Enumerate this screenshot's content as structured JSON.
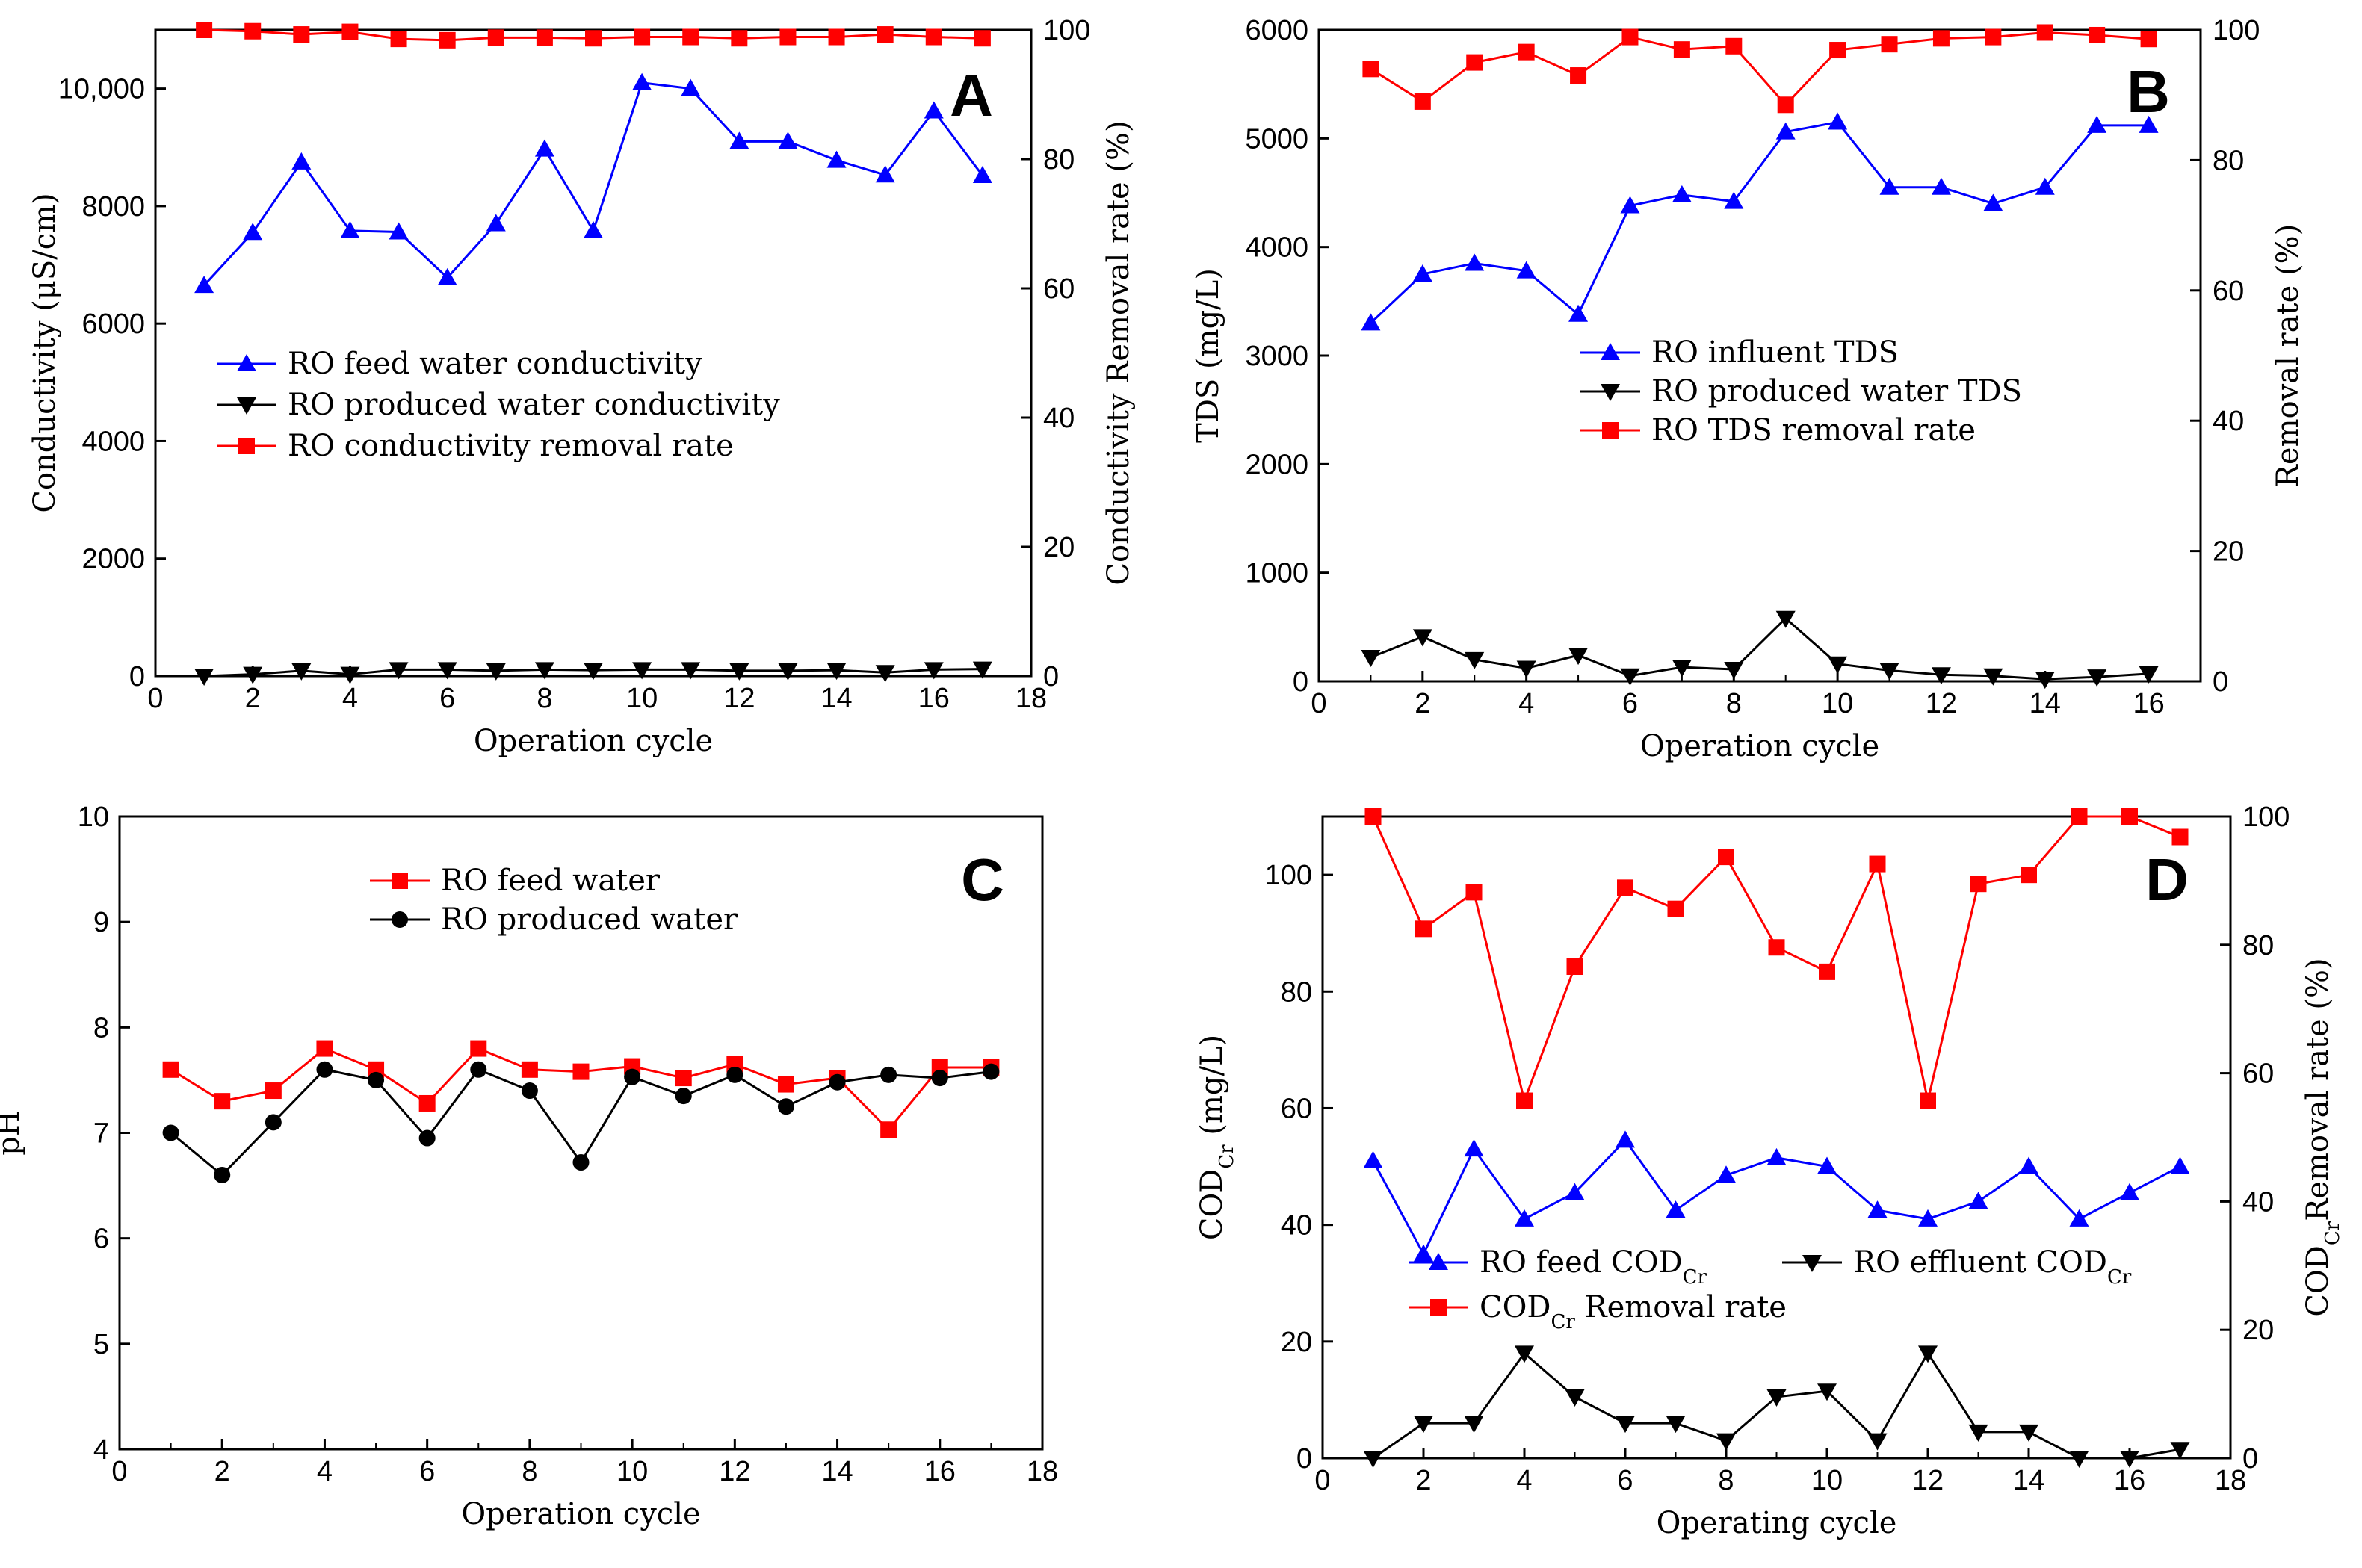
{
  "chart_data": [
    {
      "type": "line",
      "panel": "A",
      "xlabel": "Operation cycle",
      "ylabel": "Conductivity (μS/cm)",
      "y2label": "Conductivity Removal rate (%)",
      "xlim": [
        0,
        18
      ],
      "ylim": [
        0,
        11000
      ],
      "y2lim": [
        0,
        100
      ],
      "xticks": [
        "0",
        "2",
        "4",
        "6",
        "8",
        "10",
        "12",
        "14",
        "16",
        "18"
      ],
      "yticks": [
        {
          "v": 0,
          "t": "0"
        },
        {
          "v": 2000,
          "t": "2000"
        },
        {
          "v": 4000,
          "t": "4000"
        },
        {
          "v": 6000,
          "t": "6000"
        },
        {
          "v": 8000,
          "t": "8000"
        },
        {
          "v": 10000,
          "t": "10,000"
        }
      ],
      "y2ticks": [
        {
          "v": 0,
          "t": "0"
        },
        {
          "v": 20,
          "t": "20"
        },
        {
          "v": 40,
          "t": "40"
        },
        {
          "v": 60,
          "t": "60"
        },
        {
          "v": 80,
          "t": "80"
        },
        {
          "v": 100,
          "t": "100"
        }
      ],
      "legend_position": "center-left",
      "series": [
        {
          "name": "RO feed water conductivity",
          "color": "#0000ff",
          "marker": "triangle-up",
          "axis": "left",
          "x": [
            1,
            2,
            3,
            4,
            5,
            6,
            7,
            8,
            9,
            10,
            11,
            12,
            13,
            14,
            15,
            16,
            17
          ],
          "y": [
            6650,
            7550,
            8750,
            7580,
            7560,
            6780,
            7700,
            8970,
            7580,
            10100,
            10000,
            9100,
            9100,
            8780,
            8530,
            9620,
            8520
          ]
        },
        {
          "name": "RO produced water conductivity",
          "color": "#000000",
          "marker": "triangle-down",
          "axis": "left",
          "x": [
            1,
            2,
            3,
            4,
            5,
            6,
            7,
            8,
            9,
            10,
            11,
            12,
            13,
            14,
            15,
            16,
            17
          ],
          "y": [
            0,
            30,
            90,
            30,
            110,
            110,
            90,
            110,
            100,
            110,
            110,
            90,
            90,
            100,
            60,
            110,
            120
          ]
        },
        {
          "name": "RO conductivity removal rate",
          "color": "#ff0000",
          "marker": "square",
          "axis": "right",
          "x": [
            1,
            2,
            3,
            4,
            5,
            6,
            7,
            8,
            9,
            10,
            11,
            12,
            13,
            14,
            15,
            16,
            17
          ],
          "y": [
            100,
            99.8,
            99.3,
            99.7,
            98.6,
            98.4,
            98.8,
            98.8,
            98.7,
            98.9,
            98.9,
            98.7,
            98.9,
            98.9,
            99.3,
            98.9,
            98.7
          ]
        }
      ]
    },
    {
      "type": "line",
      "panel": "B",
      "xlabel": "Operation cycle",
      "ylabel": "TDS (mg/L)",
      "y2label": "Removal rate (%)",
      "xlim": [
        0,
        17
      ],
      "ylim": [
        0,
        6000
      ],
      "y2lim": [
        0,
        100
      ],
      "xticks": [
        "0",
        "2",
        "4",
        "6",
        "8",
        "10",
        "12",
        "14",
        "16"
      ],
      "yticks": [
        {
          "v": 0,
          "t": "0"
        },
        {
          "v": 1000,
          "t": "1000"
        },
        {
          "v": 2000,
          "t": "2000"
        },
        {
          "v": 3000,
          "t": "3000"
        },
        {
          "v": 4000,
          "t": "4000"
        },
        {
          "v": 5000,
          "t": "5000"
        },
        {
          "v": 6000,
          "t": "6000"
        }
      ],
      "y2ticks": [
        {
          "v": 0,
          "t": "0"
        },
        {
          "v": 20,
          "t": "20"
        },
        {
          "v": 40,
          "t": "40"
        },
        {
          "v": 60,
          "t": "60"
        },
        {
          "v": 80,
          "t": "80"
        },
        {
          "v": 100,
          "t": "100"
        }
      ],
      "legend_position": "center-right",
      "series": [
        {
          "name": "RO influent TDS",
          "color": "#0000ff",
          "marker": "triangle-up",
          "axis": "left",
          "x": [
            1,
            2,
            3,
            4,
            5,
            6,
            7,
            8,
            9,
            10,
            11,
            12,
            13,
            14,
            15,
            16
          ],
          "y": [
            3300,
            3750,
            3850,
            3780,
            3380,
            4380,
            4480,
            4420,
            5060,
            5150,
            4550,
            4550,
            4400,
            4550,
            5120,
            5120
          ]
        },
        {
          "name": "RO produced water TDS",
          "color": "#000000",
          "marker": "triangle-down",
          "axis": "left",
          "x": [
            1,
            2,
            3,
            4,
            5,
            6,
            7,
            8,
            9,
            10,
            11,
            12,
            13,
            14,
            15,
            16
          ],
          "y": [
            220,
            410,
            200,
            120,
            240,
            50,
            130,
            110,
            580,
            160,
            100,
            60,
            50,
            20,
            40,
            70
          ]
        },
        {
          "name": "RO TDS removal rate",
          "color": "#ff0000",
          "marker": "square",
          "axis": "right",
          "x": [
            1,
            2,
            3,
            4,
            5,
            6,
            7,
            8,
            9,
            10,
            11,
            12,
            13,
            14,
            15,
            16
          ],
          "y": [
            94,
            89,
            95,
            96.6,
            93,
            98.9,
            97,
            97.5,
            88.5,
            96.9,
            97.8,
            98.7,
            98.9,
            99.6,
            99.2,
            98.6
          ]
        }
      ]
    },
    {
      "type": "line",
      "panel": "C",
      "xlabel": "Operation cycle",
      "ylabel": "pH",
      "xlim": [
        0,
        18
      ],
      "ylim": [
        4,
        10
      ],
      "xticks": [
        "0",
        "2",
        "4",
        "6",
        "8",
        "10",
        "12",
        "14",
        "16",
        "18"
      ],
      "yticks": [
        {
          "v": 4,
          "t": "4"
        },
        {
          "v": 5,
          "t": "5"
        },
        {
          "v": 6,
          "t": "6"
        },
        {
          "v": 7,
          "t": "7"
        },
        {
          "v": 8,
          "t": "8"
        },
        {
          "v": 9,
          "t": "9"
        },
        {
          "v": 10,
          "t": "10"
        }
      ],
      "legend_position": "top-center",
      "series": [
        {
          "name": "RO feed water",
          "color": "#ff0000",
          "marker": "square",
          "axis": "left",
          "x": [
            1,
            2,
            3,
            4,
            5,
            6,
            7,
            8,
            9,
            10,
            11,
            12,
            13,
            14,
            15,
            16,
            17
          ],
          "y": [
            7.6,
            7.3,
            7.4,
            7.8,
            7.6,
            7.28,
            7.8,
            7.6,
            7.58,
            7.63,
            7.52,
            7.65,
            7.46,
            7.52,
            7.03,
            7.62,
            7.62
          ]
        },
        {
          "name": "RO produced water",
          "color": "#000000",
          "marker": "circle",
          "axis": "left",
          "x": [
            1,
            2,
            3,
            4,
            5,
            6,
            7,
            8,
            9,
            10,
            11,
            12,
            13,
            14,
            15,
            16,
            17
          ],
          "y": [
            7.0,
            6.6,
            7.1,
            7.6,
            7.5,
            6.95,
            7.6,
            7.4,
            6.72,
            7.53,
            7.35,
            7.55,
            7.25,
            7.48,
            7.55,
            7.52,
            7.58
          ]
        }
      ]
    },
    {
      "type": "line",
      "panel": "D",
      "xlabel": "Operating cycle",
      "ylabel": "COD",
      "ylabel_sub": "Cr",
      "ylabel_unit": " (mg/L)",
      "y2label": "COD",
      "y2label_sub": "Cr",
      "y2label_rest": "Removal rate (%)",
      "xlim": [
        0,
        18
      ],
      "ylim": [
        0,
        110
      ],
      "y2lim": [
        0,
        100
      ],
      "xticks": [
        "0",
        "2",
        "4",
        "6",
        "8",
        "10",
        "12",
        "14",
        "16",
        "18"
      ],
      "yticks": [
        {
          "v": 0,
          "t": "0"
        },
        {
          "v": 20,
          "t": "20"
        },
        {
          "v": 40,
          "t": "40"
        },
        {
          "v": 60,
          "t": "60"
        },
        {
          "v": 80,
          "t": "80"
        },
        {
          "v": 100,
          "t": "100"
        }
      ],
      "y2ticks": [
        {
          "v": 0,
          "t": "0"
        },
        {
          "v": 20,
          "t": "20"
        },
        {
          "v": 40,
          "t": "40"
        },
        {
          "v": 60,
          "t": "60"
        },
        {
          "v": 80,
          "t": "80"
        },
        {
          "v": 100,
          "t": "100"
        }
      ],
      "legend_position": "lower-center",
      "legend": [
        {
          "prefix": "RO feed COD",
          "sub": "Cr",
          "suffix": ""
        },
        {
          "prefix": "RO effluent COD",
          "sub": "Cr",
          "suffix": ""
        },
        {
          "prefix": "COD",
          "sub": "Cr",
          "suffix": " Removal rate"
        }
      ],
      "series": [
        {
          "name": "RO feed CODCr",
          "color": "#0000ff",
          "marker": "triangle-up",
          "axis": "left",
          "x": [
            1,
            2,
            3,
            4,
            5,
            6,
            7,
            8,
            9,
            10,
            11,
            12,
            13,
            14,
            15,
            16,
            17
          ],
          "y": [
            51,
            35,
            53,
            41,
            45.5,
            54.5,
            42.5,
            48.5,
            51.5,
            50,
            42.5,
            41,
            44,
            50,
            41,
            45.5,
            50
          ]
        },
        {
          "name": "RO effluent CODCr",
          "color": "#000000",
          "marker": "triangle-down",
          "axis": "left",
          "x": [
            1,
            2,
            3,
            4,
            5,
            6,
            7,
            8,
            9,
            10,
            11,
            12,
            13,
            14,
            15,
            16,
            17
          ],
          "y": [
            0,
            6,
            6,
            18,
            10.5,
            6,
            6,
            3,
            10.5,
            11.5,
            3,
            18,
            4.5,
            4.5,
            0,
            0,
            1.5
          ]
        },
        {
          "name": "CODCr Removal rate",
          "color": "#ff0000",
          "marker": "square",
          "axis": "right",
          "x": [
            1,
            2,
            3,
            4,
            5,
            6,
            7,
            8,
            9,
            10,
            11,
            12,
            13,
            14,
            15,
            16,
            17
          ],
          "y": [
            100,
            82.5,
            88.2,
            55.7,
            76.6,
            88.9,
            85.6,
            93.7,
            79.6,
            75.8,
            92.6,
            55.7,
            89.5,
            90.9,
            100,
            100,
            96.8
          ]
        }
      ]
    }
  ]
}
